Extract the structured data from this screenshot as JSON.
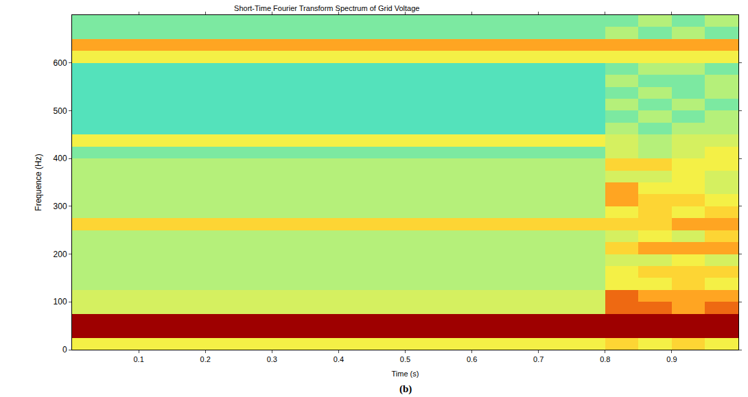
{
  "chart_data": {
    "type": "heatmap",
    "title": "Short-Time Fourier Transform Spectrum of Grid Voltage",
    "x_label": "Time (s)",
    "y_label": "Frequence (Hz)",
    "caption": "(b)",
    "xlim": [
      0,
      1
    ],
    "xticks": [
      0.1,
      0.2,
      0.3,
      0.4,
      0.5,
      0.6,
      0.7,
      0.8,
      0.9
    ],
    "ylim": [
      0,
      700
    ],
    "yticks": [
      0,
      100,
      200,
      300,
      400,
      500,
      600
    ],
    "zlim": [
      0,
      10
    ],
    "x": [
      0.025,
      0.075,
      0.125,
      0.175,
      0.225,
      0.275,
      0.325,
      0.375,
      0.425,
      0.475,
      0.525,
      0.575,
      0.625,
      0.675,
      0.725,
      0.775,
      0.825,
      0.875,
      0.925,
      0.975
    ],
    "y": [
      12.5,
      37.5,
      62.5,
      87.5,
      112.5,
      137.5,
      162.5,
      187.5,
      212.5,
      237.5,
      262.5,
      287.5,
      312.5,
      337.5,
      362.5,
      387.5,
      412.5,
      437.5,
      462.5,
      487.5,
      512.5,
      537.5,
      562.5,
      587.5,
      612.5,
      637.5,
      662.5,
      687.5
    ],
    "cells": [
      [
        5,
        5,
        5,
        5,
        5,
        5,
        5,
        5,
        5,
        5,
        5,
        5,
        5,
        5,
        5,
        5,
        6,
        5,
        6,
        5
      ],
      [
        10,
        10,
        10,
        10,
        10,
        10,
        10,
        10,
        10,
        10,
        10,
        10,
        10,
        10,
        10,
        10,
        10,
        10,
        10,
        10
      ],
      [
        10,
        10,
        10,
        10,
        10,
        10,
        10,
        10,
        10,
        10,
        10,
        10,
        10,
        10,
        10,
        10,
        10,
        10,
        10,
        10
      ],
      [
        4,
        4,
        4,
        4,
        4,
        4,
        4,
        4,
        4,
        4,
        4,
        4,
        4,
        4,
        4,
        4,
        8,
        8,
        7,
        8
      ],
      [
        4,
        4,
        4,
        4,
        4,
        4,
        4,
        4,
        4,
        4,
        4,
        4,
        4,
        4,
        4,
        4,
        8,
        7,
        7,
        7
      ],
      [
        3,
        3,
        3,
        3,
        3,
        3,
        3,
        3,
        3,
        3,
        3,
        3,
        3,
        3,
        3,
        3,
        5,
        5,
        6,
        5
      ],
      [
        3,
        3,
        3,
        3,
        3,
        3,
        3,
        3,
        3,
        3,
        3,
        3,
        3,
        3,
        3,
        3,
        5,
        6,
        6,
        6
      ],
      [
        3,
        3,
        3,
        3,
        3,
        3,
        3,
        3,
        3,
        3,
        3,
        3,
        3,
        3,
        3,
        3,
        4,
        4,
        5,
        4
      ],
      [
        3,
        3,
        3,
        3,
        3,
        3,
        3,
        3,
        3,
        3,
        3,
        3,
        3,
        3,
        3,
        3,
        6,
        7,
        7,
        7
      ],
      [
        3,
        3,
        3,
        3,
        3,
        3,
        3,
        3,
        3,
        3,
        3,
        3,
        3,
        3,
        3,
        3,
        4,
        5,
        4,
        6
      ],
      [
        6,
        6,
        6,
        6,
        6,
        6,
        6,
        6,
        6,
        6,
        6,
        6,
        6,
        6,
        6,
        6,
        6,
        6,
        7,
        7
      ],
      [
        3,
        3,
        3,
        3,
        3,
        3,
        3,
        3,
        3,
        3,
        3,
        3,
        3,
        3,
        3,
        3,
        5,
        6,
        5,
        6
      ],
      [
        3,
        3,
        3,
        3,
        3,
        3,
        3,
        3,
        3,
        3,
        3,
        3,
        3,
        3,
        3,
        3,
        7,
        6,
        6,
        5
      ],
      [
        3,
        3,
        3,
        3,
        3,
        3,
        3,
        3,
        3,
        3,
        3,
        3,
        3,
        3,
        3,
        3,
        7,
        5,
        5,
        4
      ],
      [
        3,
        3,
        3,
        3,
        3,
        3,
        3,
        3,
        3,
        3,
        3,
        3,
        3,
        3,
        3,
        3,
        4,
        4,
        5,
        4
      ],
      [
        3,
        3,
        3,
        3,
        3,
        3,
        3,
        3,
        3,
        3,
        3,
        3,
        3,
        3,
        3,
        3,
        6,
        6,
        5,
        5
      ],
      [
        2,
        2,
        2,
        2,
        2,
        2,
        2,
        2,
        2,
        2,
        2,
        2,
        2,
        2,
        2,
        2,
        4,
        3,
        4,
        5
      ],
      [
        5,
        5,
        5,
        5,
        5,
        5,
        5,
        5,
        5,
        5,
        5,
        5,
        5,
        5,
        5,
        5,
        4,
        3,
        4,
        4
      ],
      [
        1,
        1,
        1,
        1,
        1,
        1,
        1,
        1,
        1,
        1,
        1,
        1,
        1,
        1,
        1,
        1,
        3,
        2,
        3,
        3
      ],
      [
        1,
        1,
        1,
        1,
        1,
        1,
        1,
        1,
        1,
        1,
        1,
        1,
        1,
        1,
        1,
        1,
        2,
        3,
        2,
        3
      ],
      [
        1,
        1,
        1,
        1,
        1,
        1,
        1,
        1,
        1,
        1,
        1,
        1,
        1,
        1,
        1,
        1,
        3,
        2,
        3,
        2
      ],
      [
        1,
        1,
        1,
        1,
        1,
        1,
        1,
        1,
        1,
        1,
        1,
        1,
        1,
        1,
        1,
        1,
        2,
        3,
        2,
        3
      ],
      [
        1,
        1,
        1,
        1,
        1,
        1,
        1,
        1,
        1,
        1,
        1,
        1,
        1,
        1,
        1,
        1,
        3,
        2,
        2,
        3
      ],
      [
        1,
        1,
        1,
        1,
        1,
        1,
        1,
        1,
        1,
        1,
        1,
        1,
        1,
        1,
        1,
        1,
        2,
        3,
        3,
        2
      ],
      [
        5,
        5,
        5,
        5,
        5,
        5,
        5,
        5,
        5,
        5,
        5,
        5,
        5,
        5,
        5,
        5,
        5,
        5,
        5,
        5
      ],
      [
        7,
        7,
        7,
        7,
        7,
        7,
        7,
        7,
        7,
        7,
        7,
        7,
        7,
        7,
        7,
        7,
        7,
        7,
        7,
        7
      ],
      [
        2,
        2,
        2,
        2,
        2,
        2,
        2,
        2,
        2,
        2,
        2,
        2,
        2,
        2,
        2,
        2,
        3,
        2,
        3,
        2
      ],
      [
        2,
        2,
        2,
        2,
        2,
        2,
        2,
        2,
        2,
        2,
        2,
        2,
        2,
        2,
        2,
        2,
        2,
        3,
        2,
        3
      ]
    ]
  }
}
